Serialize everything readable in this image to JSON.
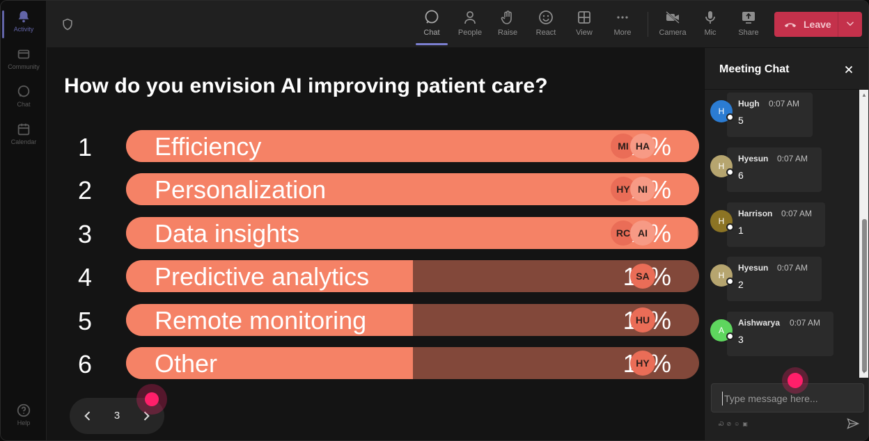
{
  "rail": {
    "items": [
      {
        "label": "Activity"
      },
      {
        "label": "Community"
      },
      {
        "label": "Chat"
      },
      {
        "label": "Calendar"
      },
      {
        "label": "Help"
      }
    ]
  },
  "toolbar": {
    "chat": "Chat",
    "people": "People",
    "raise": "Raise",
    "react": "React",
    "view": "View",
    "more": "More",
    "camera": "Camera",
    "mic": "Mic",
    "share": "Share",
    "leave": "Leave"
  },
  "poll": {
    "question": "How do you envision AI improving patient care?",
    "options": [
      {
        "rank": "1",
        "label": "Efficiency",
        "percent": "23%",
        "fraction": 1.0,
        "avatars": [
          "MI",
          "HA"
        ]
      },
      {
        "rank": "2",
        "label": "Personalization",
        "percent": "22%",
        "fraction": 1.0,
        "avatars": [
          "HY",
          "NI"
        ]
      },
      {
        "rank": "3",
        "label": "Data insights",
        "percent": "22%",
        "fraction": 0.997,
        "avatars": [
          "RC",
          "AI"
        ]
      },
      {
        "rank": "4",
        "label": "Predictive analytics",
        "percent": "11%",
        "fraction": 0.5,
        "avatars": [
          "SA"
        ]
      },
      {
        "rank": "5",
        "label": "Remote monitoring",
        "percent": "11%",
        "fraction": 0.5,
        "avatars": [
          "HU"
        ]
      },
      {
        "rank": "6",
        "label": "Other",
        "percent": "11%",
        "fraction": 0.5,
        "avatars": [
          "HY"
        ]
      }
    ]
  },
  "pager": {
    "page": "3"
  },
  "chat": {
    "title": "Meeting Chat",
    "messages": [
      {
        "initial": "H",
        "name": "Hugh",
        "time": "0:07 AM",
        "text": "5",
        "color": "#2b7cd3"
      },
      {
        "initial": "H",
        "name": "Hyesun",
        "time": "0:07 AM",
        "text": "6",
        "color": "#b6a56f"
      },
      {
        "initial": "H",
        "name": "Harrison",
        "time": "0:07 AM",
        "text": "1",
        "color": "#8c7424"
      },
      {
        "initial": "H",
        "name": "Hyesun",
        "time": "0:07 AM",
        "text": "2",
        "color": "#b6a56f"
      },
      {
        "initial": "A",
        "name": "Aishwarya",
        "time": "0:07 AM",
        "text": "3",
        "color": "#5ed65e"
      }
    ],
    "placeholder": "Type message here..."
  },
  "colors": {
    "bar_fill": "#f58266",
    "bar_track": "#82483a",
    "leave": "#c4314b",
    "accent": "#6264a7",
    "cursor": "#ff1f6a"
  }
}
